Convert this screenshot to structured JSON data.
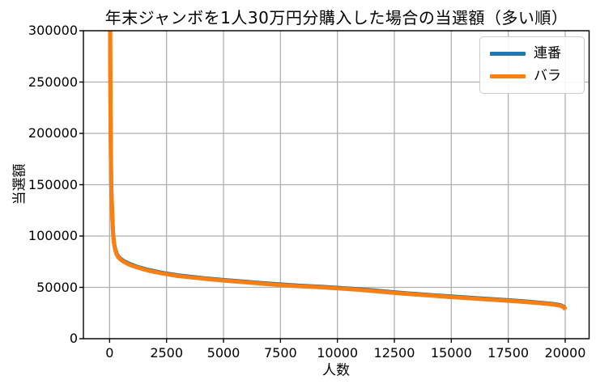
{
  "chart_data": {
    "type": "line",
    "title": "年末ジャンボを1人30万円分購入した場合の当選額（多い順）",
    "xlabel": "人数",
    "ylabel": "当選額",
    "xlim": [
      -1150,
      21050
    ],
    "ylim": [
      0,
      300000
    ],
    "xticks": [
      0,
      2500,
      5000,
      7500,
      10000,
      12500,
      15000,
      17500,
      20000
    ],
    "yticks": [
      0,
      50000,
      100000,
      150000,
      200000,
      250000,
      300000
    ],
    "grid": true,
    "legend_position": "upper right",
    "line_width": 5,
    "colors": {
      "background": "#ffffff",
      "grid": "#b0b0b0",
      "spine": "#000000",
      "text": "#000000",
      "legend_border": "#cccccc"
    },
    "series": [
      {
        "name": "連番",
        "color": "#1f77b4",
        "points": [
          [
            14,
            320000
          ],
          [
            24,
            302000
          ],
          [
            31,
            262000
          ],
          [
            39,
            232000
          ],
          [
            47,
            202000
          ],
          [
            56,
            177000
          ],
          [
            64,
            160000
          ],
          [
            71,
            152000
          ],
          [
            84,
            141800
          ],
          [
            99,
            132800
          ],
          [
            114,
            121800
          ],
          [
            129,
            113600
          ],
          [
            144,
            106500
          ],
          [
            159,
            101400
          ],
          [
            179,
            96300
          ],
          [
            209,
            91200
          ],
          [
            249,
            87100
          ],
          [
            299,
            83500
          ],
          [
            369,
            80400
          ],
          [
            479,
            77900
          ],
          [
            649,
            75300
          ],
          [
            879,
            72800
          ],
          [
            1149,
            70500
          ],
          [
            1449,
            68500
          ],
          [
            1799,
            66500
          ],
          [
            2199,
            64700
          ],
          [
            2499,
            63500
          ],
          [
            2999,
            61700
          ],
          [
            3599,
            60200
          ],
          [
            4299,
            58600
          ],
          [
            4999,
            57200
          ],
          [
            5799,
            55800
          ],
          [
            6599,
            54300
          ],
          [
            7499,
            52800
          ],
          [
            8399,
            51600
          ],
          [
            9299,
            50600
          ],
          [
            9999,
            49600
          ],
          [
            10799,
            48400
          ],
          [
            11599,
            47000
          ],
          [
            12499,
            45200
          ],
          [
            13299,
            43800
          ],
          [
            14199,
            42400
          ],
          [
            14999,
            41100
          ],
          [
            15799,
            40000
          ],
          [
            16599,
            38800
          ],
          [
            17499,
            37500
          ],
          [
            18299,
            36200
          ],
          [
            18999,
            34900
          ],
          [
            19499,
            33800
          ],
          [
            19799,
            32600
          ],
          [
            19949,
            31000
          ],
          [
            20000,
            28800
          ]
        ]
      },
      {
        "name": "バラ",
        "color": "#ff7f0e",
        "points": [
          [
            15,
            320000
          ],
          [
            25,
            300000
          ],
          [
            32,
            260000
          ],
          [
            40,
            230000
          ],
          [
            48,
            200000
          ],
          [
            57,
            175000
          ],
          [
            65,
            158000
          ],
          [
            72,
            150000
          ],
          [
            85,
            140000
          ],
          [
            100,
            131000
          ],
          [
            115,
            120000
          ],
          [
            130,
            112000
          ],
          [
            145,
            105000
          ],
          [
            160,
            100000
          ],
          [
            180,
            95000
          ],
          [
            210,
            90000
          ],
          [
            250,
            86000
          ],
          [
            300,
            82500
          ],
          [
            370,
            79500
          ],
          [
            480,
            77000
          ],
          [
            650,
            74500
          ],
          [
            880,
            72000
          ],
          [
            1150,
            69800
          ],
          [
            1450,
            67800
          ],
          [
            1800,
            65800
          ],
          [
            2200,
            64000
          ],
          [
            2500,
            62800
          ],
          [
            3000,
            61000
          ],
          [
            3600,
            59600
          ],
          [
            4300,
            58000
          ],
          [
            5000,
            56600
          ],
          [
            5800,
            55200
          ],
          [
            6600,
            53700
          ],
          [
            7500,
            52200
          ],
          [
            8400,
            51000
          ],
          [
            9300,
            50000
          ],
          [
            10000,
            49000
          ],
          [
            10800,
            47800
          ],
          [
            11600,
            46400
          ],
          [
            12500,
            44600
          ],
          [
            13300,
            43200
          ],
          [
            14200,
            41800
          ],
          [
            15000,
            40500
          ],
          [
            15800,
            39400
          ],
          [
            16600,
            38200
          ],
          [
            17500,
            36900
          ],
          [
            18300,
            35600
          ],
          [
            19000,
            34300
          ],
          [
            19500,
            33200
          ],
          [
            19800,
            32000
          ],
          [
            19950,
            30400
          ],
          [
            20000,
            28200
          ]
        ]
      }
    ]
  }
}
